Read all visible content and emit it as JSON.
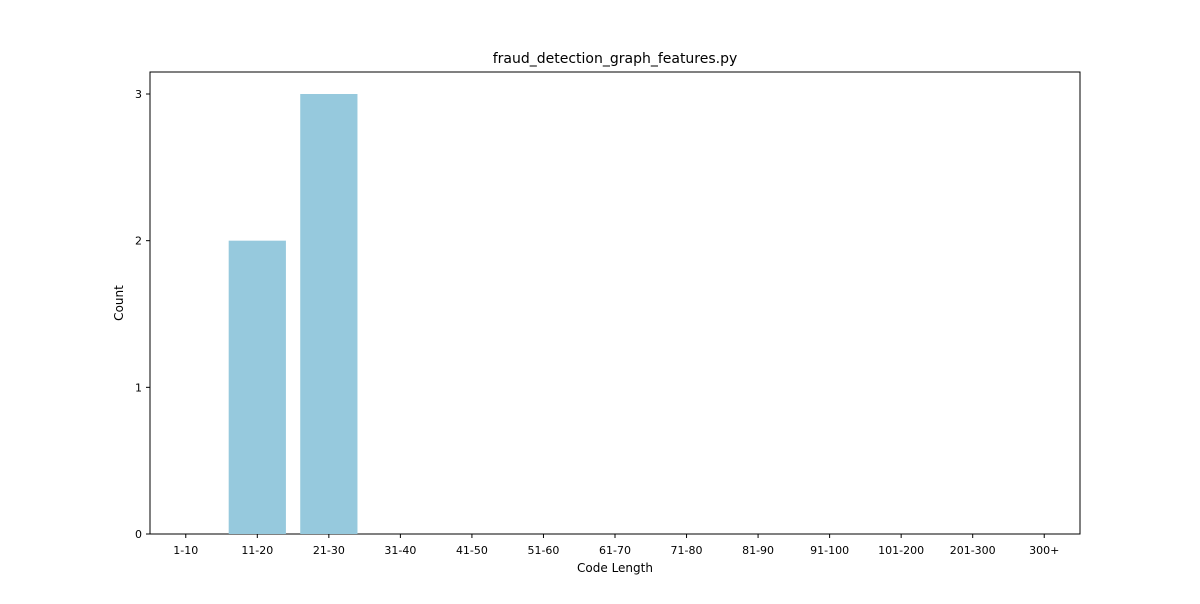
{
  "chart_data": {
    "type": "bar",
    "title": "fraud_detection_graph_features.py",
    "xlabel": "Code Length",
    "ylabel": "Count",
    "categories": [
      "1-10",
      "11-20",
      "21-30",
      "31-40",
      "41-50",
      "51-60",
      "61-70",
      "71-80",
      "81-90",
      "91-100",
      "101-200",
      "201-300",
      "300+"
    ],
    "values": [
      0,
      2,
      3,
      0,
      0,
      0,
      0,
      0,
      0,
      0,
      0,
      0,
      0
    ],
    "yticks": [
      0,
      1,
      2,
      3
    ],
    "ylim": [
      0,
      3.15
    ],
    "grid": false,
    "bar_color": "#96c9dd"
  }
}
